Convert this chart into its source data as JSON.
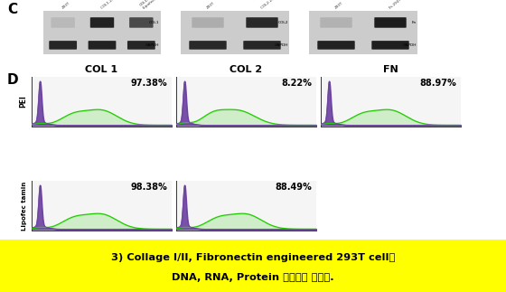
{
  "title_c": "C",
  "title_d": "D",
  "col1_label": "COL 1",
  "col2_label": "COL 2",
  "fn_label": "FN",
  "pei_label": "PEI",
  "lipofectamin_label": "Lipofec tamin",
  "pei_col1_pct": "97.38%",
  "pei_col2_pct": "8.22%",
  "pei_fn_pct": "88.97%",
  "lipo_col1_pct": "98.38%",
  "lipo_col2_pct": "88.49%",
  "footer_line1": "3) Collage I/II, Fibronectin engineered 293T cell을",
  "footer_line2": "DNA, RNA, Protein 수준에서 검증함.",
  "footer_bg": "#FFFF00",
  "footer_text_color": "#000000",
  "bg_color": "#ffffff",
  "purple_color": "#6B3FA0",
  "green_color": "#22CC00",
  "wb_bg": "#c8c8c8",
  "wb_dark_band": "#202020",
  "wb_light_band": "#808080"
}
